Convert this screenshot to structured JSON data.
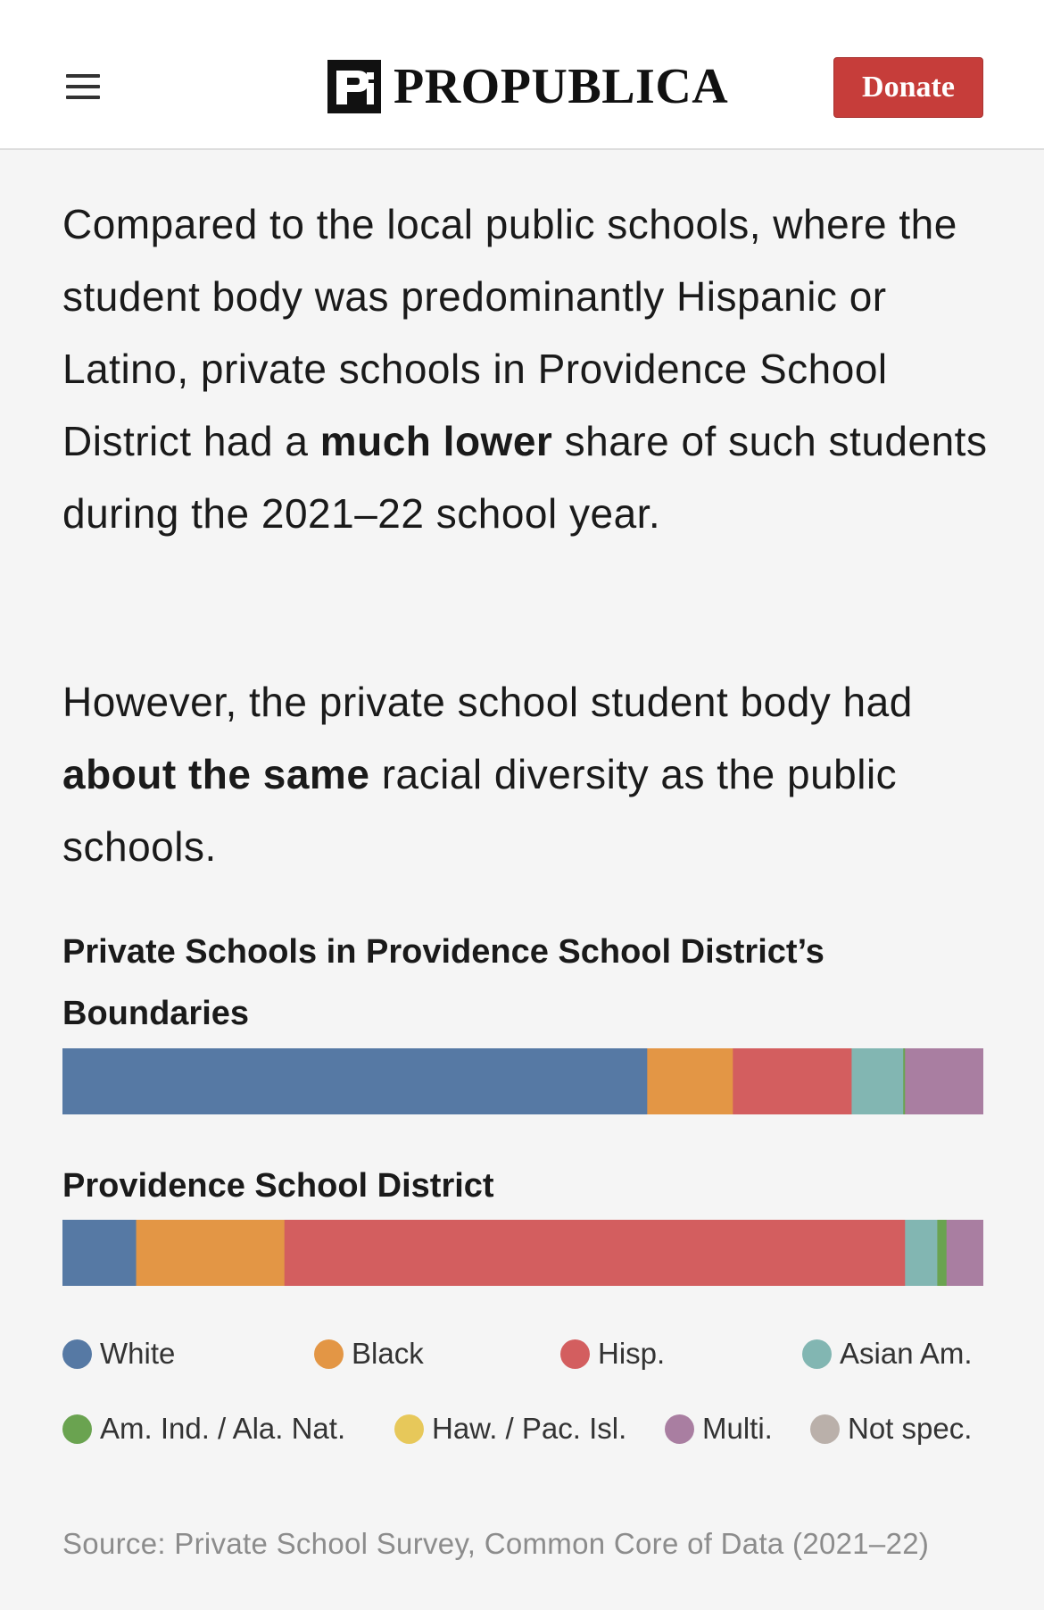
{
  "header": {
    "logo_text": "PROPUBLICA",
    "donate_label": "Donate"
  },
  "paragraph1": {
    "part1": "Compared to the local public schools, where the student body was predominantly Hispanic or Latino, private schools in Providence School District had a ",
    "bold": "much lower",
    "part2": " share of such students during the 2021–22 school year."
  },
  "paragraph2": {
    "part1": "However, the private school student body had ",
    "bold": "about the same",
    "part2": " racial diversity as the public schools."
  },
  "colors": {
    "White": "#5679a4",
    "Black": "#e39645",
    "Hisp.": "#d35e5f",
    "Asian Am.": "#82b6b2",
    "Am. Ind. / Ala. Nat.": "#6aa350",
    "Haw. / Pac. Isl.": "#e7c85a",
    "Multi.": "#a97ea1",
    "Not spec.": "#bab0aa"
  },
  "chart_data": {
    "type": "bar",
    "orientation": "horizontal-stacked-100",
    "categories": [
      "White",
      "Black",
      "Hisp.",
      "Asian Am.",
      "Am. Ind. / Ala. Nat.",
      "Haw. / Pac. Isl.",
      "Multi.",
      "Not spec."
    ],
    "series": [
      {
        "name": "Private Schools in Providence School District’s Boundaries",
        "values": [
          63.5,
          9.3,
          12.9,
          5.6,
          0.2,
          0,
          8.5,
          0
        ]
      },
      {
        "name": "Providence School District",
        "values": [
          8.0,
          16.1,
          67.4,
          3.5,
          1.0,
          0,
          4.0,
          0
        ]
      }
    ],
    "legend": "bottom",
    "source": "Source: Private School Survey, Common Core of Data (2021–22)"
  }
}
